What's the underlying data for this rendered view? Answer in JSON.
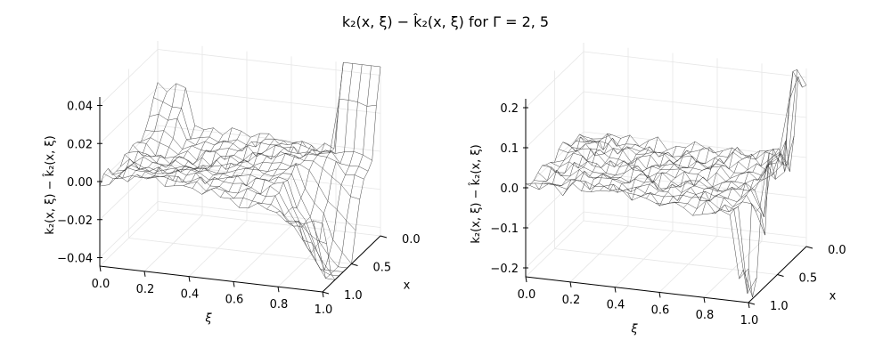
{
  "title": "k₂(x, ξ) − k̂₂(x, ξ) for Γ = 2, 5",
  "chart_data": [
    {
      "type": "surface",
      "zlabel": "k₂(x, ξ) − k̂₂(x, ξ)",
      "xi_label": "ξ",
      "x_label": "x",
      "xi_ticks": [
        "0.0",
        "0.2",
        "0.4",
        "0.6",
        "0.8",
        "1.0"
      ],
      "x_ticks": [
        "0.0",
        "0.5",
        "1.0"
      ],
      "z_ticks": [
        "−0.04",
        "−0.02",
        "0.00",
        "0.02",
        "0.04"
      ],
      "zlim": [
        -0.045,
        0.045
      ],
      "gamma": 2
    },
    {
      "type": "surface",
      "zlabel": "k₂(x, ξ) − k̂₂(x, ξ)",
      "xi_label": "ξ",
      "x_label": "x",
      "xi_ticks": [
        "0.0",
        "0.2",
        "0.4",
        "0.6",
        "0.8",
        "1.0"
      ],
      "x_ticks": [
        "0.0",
        "0.5",
        "1.0"
      ],
      "z_ticks": [
        "−0.2",
        "−0.1",
        "0.0",
        "0.1",
        "0.2"
      ],
      "zlim": [
        -0.25,
        0.25
      ],
      "gamma": 5
    }
  ]
}
